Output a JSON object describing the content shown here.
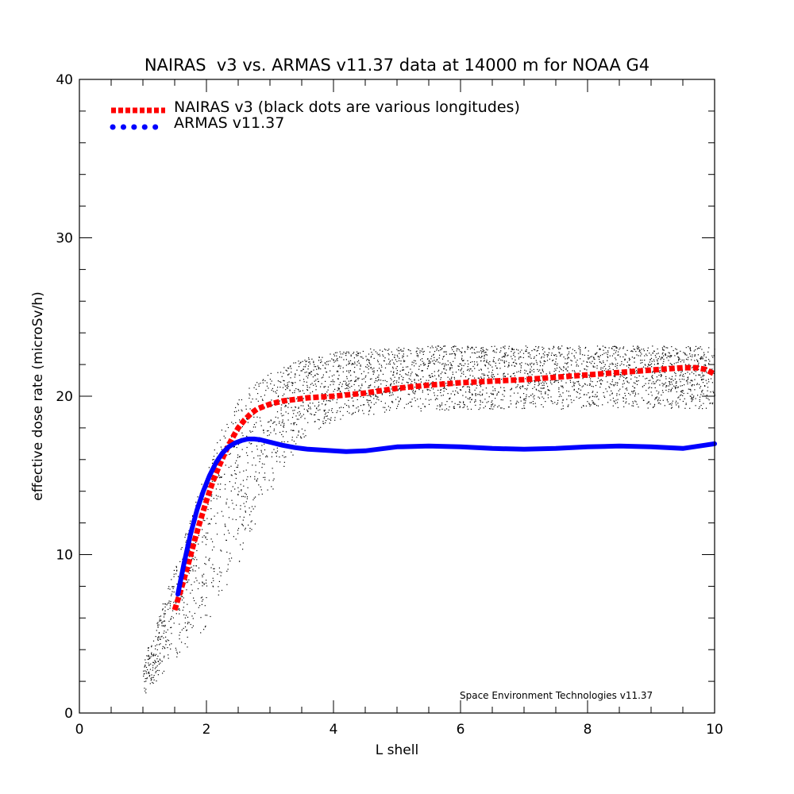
{
  "chart_data": {
    "type": "line",
    "title": "NAIRAS  v3 vs. ARMAS v11.37 data at 14000 m for NOAA G4",
    "xlabel": "L shell",
    "ylabel": "effective dose rate (microSv/h)",
    "xlim": [
      0,
      10
    ],
    "ylim": [
      0,
      40
    ],
    "x_ticks": [
      0,
      2,
      4,
      6,
      8,
      10
    ],
    "y_ticks": [
      0,
      10,
      20,
      30,
      40
    ],
    "x_tick_labels": [
      "0",
      "2",
      "4",
      "6",
      "8",
      "10"
    ],
    "y_tick_labels": [
      "0",
      "10",
      "20",
      "30",
      "40"
    ],
    "grid": false,
    "legend_position": "top-left",
    "series": [
      {
        "name": "NAIRAS v3 (black dots are various longitudes)",
        "style": "dashed",
        "color": "#ff0000",
        "x": [
          1.5,
          1.6,
          1.7,
          1.8,
          1.9,
          2.0,
          2.1,
          2.2,
          2.3,
          2.4,
          2.5,
          2.6,
          2.7,
          2.8,
          3.0,
          3.2,
          3.4,
          3.6,
          3.8,
          4.0,
          4.5,
          5.0,
          5.5,
          6.0,
          6.5,
          7.0,
          7.5,
          8.0,
          8.5,
          9.0,
          9.5,
          9.7,
          9.85,
          10.0
        ],
        "values": [
          6.5,
          7.8,
          9.2,
          10.7,
          12.1,
          13.4,
          14.6,
          15.6,
          16.5,
          17.3,
          18.0,
          18.5,
          18.9,
          19.2,
          19.5,
          19.7,
          19.8,
          19.9,
          19.95,
          20.0,
          20.2,
          20.5,
          20.7,
          20.85,
          20.95,
          21.05,
          21.2,
          21.35,
          21.5,
          21.65,
          21.8,
          21.8,
          21.7,
          21.4
        ]
      },
      {
        "name": "ARMAS v11.37",
        "style": "solid",
        "color": "#0000ff",
        "x": [
          1.55,
          1.65,
          1.75,
          1.85,
          1.95,
          2.05,
          2.15,
          2.25,
          2.35,
          2.45,
          2.55,
          2.65,
          2.75,
          2.85,
          3.0,
          3.2,
          3.4,
          3.6,
          3.8,
          4.0,
          4.2,
          4.5,
          5.0,
          5.5,
          6.0,
          6.5,
          7.0,
          7.5,
          8.0,
          8.5,
          9.0,
          9.5,
          10.0
        ],
        "values": [
          7.5,
          9.5,
          11.3,
          12.8,
          14.0,
          15.0,
          15.8,
          16.4,
          16.8,
          17.05,
          17.2,
          17.3,
          17.3,
          17.25,
          17.1,
          16.9,
          16.75,
          16.65,
          16.6,
          16.55,
          16.5,
          16.55,
          16.8,
          16.85,
          16.8,
          16.7,
          16.65,
          16.7,
          16.8,
          16.85,
          16.8,
          16.7,
          17.0
        ]
      }
    ],
    "scatter_band": {
      "label": "black dots are various longitudes",
      "color": "#000000",
      "x": [
        1.0,
        1.1,
        1.2,
        1.3,
        1.4,
        1.5,
        1.6,
        1.7,
        1.8,
        1.9,
        2.0,
        2.1,
        2.2,
        2.3,
        2.4,
        2.5,
        2.6,
        2.7,
        2.8,
        2.9,
        3.0,
        3.2,
        3.4,
        3.6,
        3.8,
        4.0,
        4.5,
        5.0,
        5.5,
        6.0,
        6.5,
        7.0,
        7.5,
        8.0,
        8.5,
        9.0,
        9.5,
        10.0
      ],
      "low": [
        1.0,
        1.5,
        2.0,
        2.5,
        3.0,
        3.4,
        3.8,
        4.2,
        4.6,
        5.0,
        5.5,
        6.1,
        6.8,
        7.6,
        8.4,
        9.3,
        10.2,
        11.1,
        12.0,
        12.9,
        13.8,
        15.3,
        16.5,
        17.4,
        18.0,
        18.4,
        18.8,
        19.0,
        19.1,
        19.1,
        19.2,
        19.2,
        19.2,
        19.2,
        19.2,
        19.2,
        19.2,
        19.2
      ],
      "high": [
        3.5,
        4.5,
        5.5,
        6.8,
        8.0,
        9.3,
        10.6,
        11.9,
        13.2,
        14.4,
        15.5,
        16.6,
        17.6,
        18.5,
        19.2,
        19.8,
        20.3,
        20.7,
        21.0,
        21.3,
        21.5,
        21.9,
        22.2,
        22.5,
        22.7,
        22.8,
        23.0,
        23.1,
        23.2,
        23.2,
        23.2,
        23.2,
        23.2,
        23.2,
        23.2,
        23.2,
        23.2,
        23.2
      ]
    },
    "annotations": [
      "Space Environment Technologies v11.37"
    ]
  }
}
